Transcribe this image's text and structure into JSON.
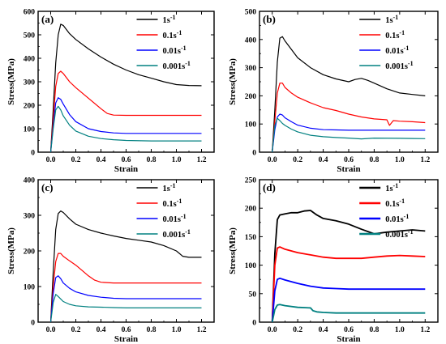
{
  "figure": {
    "panel_labels": [
      "(a)",
      "(b)",
      "(c)",
      "(d)"
    ]
  },
  "chart_data": [
    {
      "type": "line",
      "panel": "(a)",
      "xlabel": "Strain",
      "ylabel": "Stress(MPa)",
      "xlim": [
        -0.1,
        1.3
      ],
      "ylim": [
        0,
        600
      ],
      "xticks": [
        0.0,
        0.2,
        0.4,
        0.6,
        0.8,
        1.0,
        1.2
      ],
      "yticks": [
        0,
        100,
        200,
        300,
        400,
        500,
        600
      ],
      "grid": false,
      "legend": "top-right",
      "series": [
        {
          "name": "1s",
          "name_sup": "-1",
          "color": "#000000",
          "x": [
            0.0,
            0.02,
            0.04,
            0.06,
            0.08,
            0.1,
            0.15,
            0.2,
            0.3,
            0.4,
            0.5,
            0.6,
            0.7,
            0.8,
            0.9,
            1.0,
            1.1,
            1.2
          ],
          "y": [
            0,
            180,
            380,
            500,
            545,
            540,
            505,
            480,
            440,
            405,
            375,
            350,
            330,
            315,
            300,
            288,
            284,
            283
          ]
        },
        {
          "name": "0.1s",
          "name_sup": "-1",
          "color": "#ff0000",
          "x": [
            0.0,
            0.02,
            0.04,
            0.06,
            0.08,
            0.1,
            0.15,
            0.2,
            0.3,
            0.4,
            0.45,
            0.5,
            0.6,
            0.8,
            1.0,
            1.2
          ],
          "y": [
            0,
            140,
            280,
            335,
            345,
            335,
            300,
            275,
            230,
            185,
            165,
            158,
            157,
            157,
            157,
            157
          ]
        },
        {
          "name": "0.01s",
          "name_sup": "-1",
          "color": "#0000ff",
          "x": [
            0.0,
            0.02,
            0.04,
            0.06,
            0.08,
            0.1,
            0.15,
            0.2,
            0.3,
            0.4,
            0.5,
            0.6,
            0.8,
            1.0,
            1.2
          ],
          "y": [
            0,
            110,
            210,
            232,
            225,
            205,
            160,
            130,
            100,
            88,
            82,
            80,
            80,
            80,
            80
          ]
        },
        {
          "name": "0.001s",
          "name_sup": "-1",
          "color": "#008080",
          "x": [
            0.0,
            0.02,
            0.04,
            0.06,
            0.08,
            0.1,
            0.15,
            0.2,
            0.3,
            0.4,
            0.5,
            0.6,
            0.8,
            1.0,
            1.2
          ],
          "y": [
            0,
            100,
            180,
            195,
            180,
            155,
            115,
            90,
            68,
            58,
            53,
            50,
            48,
            48,
            48
          ]
        }
      ]
    },
    {
      "type": "line",
      "panel": "(b)",
      "xlabel": "Strain",
      "ylabel": "Stress(MPa)",
      "xlim": [
        -0.1,
        1.3
      ],
      "ylim": [
        0,
        500
      ],
      "xticks": [
        0.0,
        0.2,
        0.4,
        0.6,
        0.8,
        1.0,
        1.2
      ],
      "yticks": [
        0,
        100,
        200,
        300,
        400,
        500
      ],
      "grid": false,
      "legend": "top-right",
      "series": [
        {
          "name": "1s",
          "name_sup": "-1",
          "color": "#000000",
          "x": [
            0.0,
            0.02,
            0.04,
            0.06,
            0.08,
            0.1,
            0.15,
            0.2,
            0.3,
            0.4,
            0.5,
            0.6,
            0.65,
            0.7,
            0.75,
            0.8,
            0.9,
            1.0,
            1.1,
            1.2
          ],
          "y": [
            0,
            150,
            320,
            405,
            410,
            395,
            365,
            335,
            300,
            275,
            260,
            250,
            258,
            262,
            255,
            245,
            225,
            210,
            205,
            200
          ]
        },
        {
          "name": "0.1s",
          "name_sup": "-1",
          "color": "#ff0000",
          "x": [
            0.0,
            0.02,
            0.04,
            0.06,
            0.08,
            0.1,
            0.15,
            0.2,
            0.3,
            0.4,
            0.5,
            0.6,
            0.7,
            0.8,
            0.9,
            0.92,
            0.95,
            1.0,
            1.1,
            1.2
          ],
          "y": [
            0,
            110,
            210,
            245,
            245,
            230,
            210,
            195,
            175,
            158,
            148,
            135,
            125,
            118,
            115,
            95,
            112,
            110,
            108,
            105
          ]
        },
        {
          "name": "0.01s",
          "name_sup": "-1",
          "color": "#0000ff",
          "x": [
            0.0,
            0.02,
            0.04,
            0.06,
            0.08,
            0.1,
            0.15,
            0.2,
            0.3,
            0.4,
            0.5,
            0.6,
            0.8,
            1.0,
            1.2
          ],
          "y": [
            0,
            80,
            125,
            135,
            132,
            122,
            108,
            96,
            85,
            80,
            79,
            78,
            78,
            78,
            78
          ]
        },
        {
          "name": "0.001s",
          "name_sup": "-1",
          "color": "#008080",
          "x": [
            0.0,
            0.02,
            0.04,
            0.06,
            0.08,
            0.1,
            0.15,
            0.2,
            0.3,
            0.4,
            0.5,
            0.6,
            0.7,
            0.8,
            1.0,
            1.2
          ],
          "y": [
            0,
            95,
            120,
            112,
            102,
            95,
            82,
            72,
            60,
            55,
            52,
            50,
            47,
            50,
            49,
            48
          ]
        }
      ]
    },
    {
      "type": "line",
      "panel": "(c)",
      "xlabel": "Strain",
      "ylabel": "Stress(MPa)",
      "xlim": [
        -0.1,
        1.3
      ],
      "ylim": [
        0,
        400
      ],
      "xticks": [
        0.0,
        0.2,
        0.4,
        0.6,
        0.8,
        1.0,
        1.2
      ],
      "yticks": [
        0,
        100,
        200,
        300,
        400
      ],
      "grid": false,
      "legend": "top-right",
      "series": [
        {
          "name": "1s",
          "name_sup": "-1",
          "color": "#000000",
          "x": [
            0.0,
            0.02,
            0.04,
            0.06,
            0.08,
            0.1,
            0.15,
            0.2,
            0.3,
            0.4,
            0.5,
            0.6,
            0.7,
            0.8,
            0.9,
            1.0,
            1.05,
            1.1,
            1.2
          ],
          "y": [
            0,
            140,
            260,
            305,
            312,
            308,
            290,
            275,
            260,
            250,
            242,
            235,
            230,
            225,
            215,
            200,
            185,
            182,
            182
          ]
        },
        {
          "name": "0.1s",
          "name_sup": "-1",
          "color": "#ff0000",
          "x": [
            0.0,
            0.02,
            0.04,
            0.06,
            0.08,
            0.1,
            0.15,
            0.2,
            0.25,
            0.3,
            0.35,
            0.4,
            0.5,
            0.6,
            0.8,
            1.0,
            1.2
          ],
          "y": [
            0,
            100,
            170,
            193,
            193,
            185,
            172,
            160,
            145,
            130,
            118,
            112,
            110,
            110,
            110,
            110,
            110
          ]
        },
        {
          "name": "0.01s",
          "name_sup": "-1",
          "color": "#0000ff",
          "x": [
            0.0,
            0.02,
            0.04,
            0.06,
            0.08,
            0.1,
            0.15,
            0.2,
            0.3,
            0.4,
            0.5,
            0.6,
            0.8,
            1.0,
            1.2
          ],
          "y": [
            0,
            80,
            125,
            130,
            122,
            110,
            95,
            85,
            75,
            70,
            67,
            66,
            66,
            66,
            66
          ]
        },
        {
          "name": "0.001s",
          "name_sup": "-1",
          "color": "#008080",
          "x": [
            0.0,
            0.02,
            0.04,
            0.06,
            0.08,
            0.1,
            0.15,
            0.2,
            0.3,
            0.4,
            0.5,
            0.6,
            0.8,
            1.0,
            1.2
          ],
          "y": [
            0,
            55,
            78,
            72,
            65,
            58,
            50,
            46,
            43,
            42,
            41,
            40,
            40,
            40,
            40
          ]
        }
      ]
    },
    {
      "type": "line",
      "panel": "(d)",
      "xlabel": "Strain",
      "ylabel": "Stress(MPa)",
      "xlim": [
        -0.1,
        1.3
      ],
      "ylim": [
        0,
        250
      ],
      "xticks": [
        0.0,
        0.2,
        0.4,
        0.6,
        0.8,
        1.0,
        1.2
      ],
      "yticks": [
        0,
        50,
        100,
        150,
        200,
        250
      ],
      "grid": false,
      "legend": "top-right",
      "series": [
        {
          "name": "1s",
          "name_sup": "-1",
          "color": "#000000",
          "x": [
            0.0,
            0.02,
            0.04,
            0.06,
            0.1,
            0.15,
            0.2,
            0.25,
            0.3,
            0.35,
            0.4,
            0.5,
            0.6,
            0.7,
            0.8,
            0.9,
            1.0,
            1.1,
            1.2
          ],
          "y": [
            0,
            120,
            180,
            188,
            190,
            192,
            192,
            195,
            196,
            188,
            182,
            178,
            172,
            163,
            155,
            158,
            160,
            162,
            160
          ]
        },
        {
          "name": "0.1s",
          "name_sup": "-1",
          "color": "#ff0000",
          "x": [
            0.0,
            0.02,
            0.04,
            0.06,
            0.1,
            0.2,
            0.3,
            0.4,
            0.5,
            0.6,
            0.7,
            0.8,
            0.9,
            1.0,
            1.1,
            1.2
          ],
          "y": [
            0,
            100,
            130,
            132,
            128,
            122,
            118,
            114,
            112,
            112,
            112,
            114,
            116,
            117,
            116,
            115
          ]
        },
        {
          "name": "0.01s",
          "name_sup": "-1",
          "color": "#0000ff",
          "x": [
            0.0,
            0.02,
            0.04,
            0.06,
            0.1,
            0.2,
            0.3,
            0.4,
            0.5,
            0.6,
            0.8,
            1.0,
            1.2
          ],
          "y": [
            0,
            55,
            75,
            77,
            74,
            68,
            63,
            60,
            59,
            58,
            58,
            58,
            58
          ]
        },
        {
          "name": "0.001s",
          "name_sup": "-1",
          "color": "#008080",
          "x": [
            0.0,
            0.02,
            0.04,
            0.06,
            0.1,
            0.2,
            0.3,
            0.32,
            0.35,
            0.4,
            0.5,
            0.6,
            0.8,
            1.0,
            1.2
          ],
          "y": [
            0,
            22,
            30,
            31,
            29,
            26,
            25,
            20,
            18,
            17,
            16,
            16,
            16,
            16,
            16
          ]
        }
      ]
    }
  ]
}
